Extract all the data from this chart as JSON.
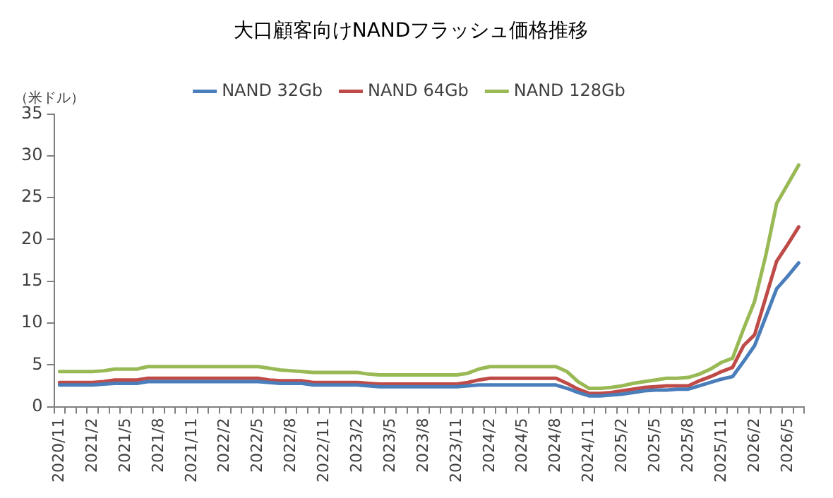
{
  "chart_data": {
    "type": "line",
    "title": "大口顧客向けNANDフラッシュ価格推移",
    "ylabel": "（米ドル）",
    "categories": [
      "2020/11",
      null,
      null,
      "2021/2",
      null,
      null,
      "2021/5",
      null,
      null,
      "2021/8",
      null,
      null,
      "2021/11",
      null,
      null,
      "2022/2",
      null,
      null,
      "2022/5",
      null,
      null,
      "2022/8",
      null,
      null,
      "2022/11",
      null,
      null,
      "2023/2",
      null,
      null,
      "2023/5",
      null,
      null,
      "2023/8",
      null,
      null,
      "2023/11",
      null,
      null,
      "2024/2",
      null,
      null,
      "2024/5",
      null,
      null,
      "2024/8",
      null,
      null,
      "2024/11",
      null,
      null,
      "2025/2",
      null,
      null,
      "2025/5",
      null,
      null,
      "2025/8",
      null,
      null,
      "2025/11",
      null,
      null,
      "2026/2",
      null,
      null,
      "2026/5",
      null
    ],
    "series": [
      {
        "name": "NAND 32Gb",
        "color": "#4a7ebb",
        "values": [
          2.6,
          2.6,
          2.6,
          2.6,
          2.7,
          2.8,
          2.8,
          2.8,
          3.0,
          3.0,
          3.0,
          3.0,
          3.0,
          3.0,
          3.0,
          3.0,
          3.0,
          3.0,
          3.0,
          2.9,
          2.8,
          2.8,
          2.8,
          2.6,
          2.6,
          2.6,
          2.6,
          2.6,
          2.5,
          2.4,
          2.4,
          2.4,
          2.4,
          2.4,
          2.4,
          2.4,
          2.4,
          2.5,
          2.6,
          2.6,
          2.6,
          2.6,
          2.6,
          2.6,
          2.6,
          2.6,
          2.2,
          1.7,
          1.3,
          1.3,
          1.4,
          1.5,
          1.7,
          1.9,
          2.0,
          2.0,
          2.1,
          2.1,
          2.5,
          2.9,
          3.3,
          3.6,
          5.4,
          7.3,
          10.7,
          14.1,
          15.6,
          17.2
        ]
      },
      {
        "name": "NAND 64Gb",
        "color": "#be4b48",
        "values": [
          2.9,
          2.9,
          2.9,
          2.9,
          3.0,
          3.2,
          3.2,
          3.2,
          3.4,
          3.4,
          3.4,
          3.4,
          3.4,
          3.4,
          3.4,
          3.4,
          3.4,
          3.4,
          3.4,
          3.2,
          3.1,
          3.1,
          3.1,
          2.9,
          2.9,
          2.9,
          2.9,
          2.9,
          2.8,
          2.7,
          2.7,
          2.7,
          2.7,
          2.7,
          2.7,
          2.7,
          2.7,
          2.9,
          3.2,
          3.4,
          3.4,
          3.4,
          3.4,
          3.4,
          3.4,
          3.4,
          2.8,
          2.1,
          1.6,
          1.6,
          1.7,
          1.9,
          2.1,
          2.3,
          2.4,
          2.5,
          2.5,
          2.5,
          3.1,
          3.6,
          4.2,
          4.7,
          7.3,
          8.6,
          13.0,
          17.4,
          19.4,
          21.5
        ]
      },
      {
        "name": "NAND 128Gb",
        "color": "#98b954",
        "values": [
          4.2,
          4.2,
          4.2,
          4.2,
          4.3,
          4.5,
          4.5,
          4.5,
          4.8,
          4.8,
          4.8,
          4.8,
          4.8,
          4.8,
          4.8,
          4.8,
          4.8,
          4.8,
          4.8,
          4.6,
          4.4,
          4.3,
          4.2,
          4.1,
          4.1,
          4.1,
          4.1,
          4.1,
          3.9,
          3.8,
          3.8,
          3.8,
          3.8,
          3.8,
          3.8,
          3.8,
          3.8,
          4.0,
          4.5,
          4.8,
          4.8,
          4.8,
          4.8,
          4.8,
          4.8,
          4.8,
          4.2,
          3.0,
          2.2,
          2.2,
          2.3,
          2.5,
          2.8,
          3.0,
          3.2,
          3.4,
          3.4,
          3.5,
          3.9,
          4.5,
          5.3,
          5.8,
          9.3,
          12.6,
          18.0,
          24.3,
          26.6,
          28.9
        ]
      }
    ],
    "ylim": [
      0,
      35
    ],
    "yticks": [
      0,
      5,
      10,
      15,
      20,
      25,
      30,
      35
    ],
    "grid": false,
    "legend": "top",
    "marker": "none",
    "line_style": "solid"
  }
}
